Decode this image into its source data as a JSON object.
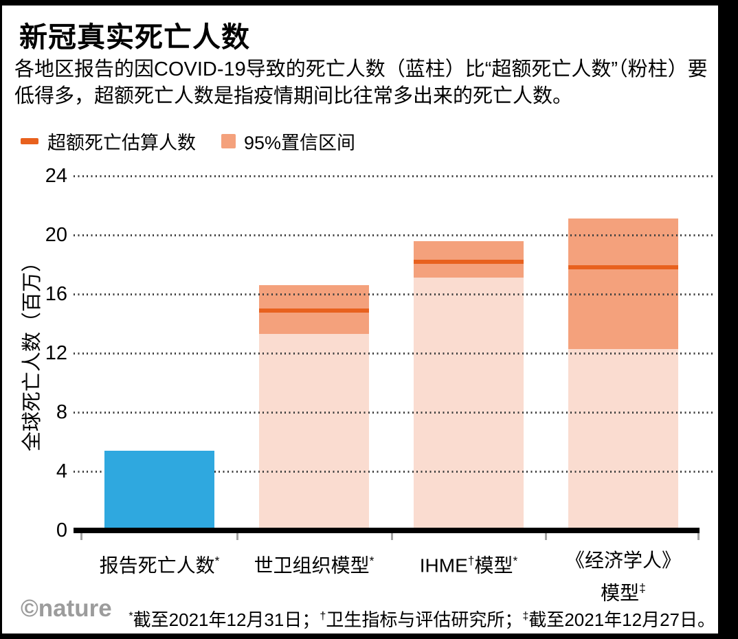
{
  "header": {
    "title": "新冠真实死亡人数",
    "subtitle": "各地区报告的因COVID-19导致的死亡人数（蓝柱）比“超额死亡人数”（粉柱）要低得多，超额死亡人数是指疫情期间比往常多出来的死亡人数。"
  },
  "legend": [
    {
      "label": "超额死亡估算人数",
      "swatch": "dash",
      "color": "#e8611e"
    },
    {
      "label": "95%置信区间",
      "swatch": "square",
      "color": "#f4a17c"
    }
  ],
  "chart_data": {
    "type": "bar",
    "title": "新冠真实死亡人数",
    "ylabel": "全球死亡人数（百万）",
    "ylim": [
      0,
      24
    ],
    "yticks": [
      0,
      4,
      8,
      12,
      16,
      20,
      24
    ],
    "grid": "horizontal-dotted",
    "legend_position": "top-left",
    "categories": [
      "报告死亡人数*",
      "世卫组织模型*",
      "IHME†模型*",
      "《经济学人》\n模型‡"
    ],
    "series": [
      {
        "name": "报告死亡人数",
        "type": "bar",
        "color": "#2fa8df",
        "values": [
          5.4,
          null,
          null,
          null
        ]
      },
      {
        "name": "超额死亡估算人数",
        "type": "marker-line",
        "color": "#e8611e",
        "values": [
          null,
          14.9,
          18.2,
          17.8
        ]
      },
      {
        "name": "95%置信区间",
        "type": "range",
        "color": "#f4a17c",
        "color_below_range": "#fadcd0",
        "ranges": [
          null,
          [
            13.3,
            16.6
          ],
          [
            17.1,
            19.6
          ],
          [
            12.3,
            21.1
          ]
        ]
      }
    ]
  },
  "footer": {
    "logo": "©nature",
    "footnote": "*截至2021年12月31日；†卫生指标与评估研究所；‡截至2021年12月27日。"
  }
}
